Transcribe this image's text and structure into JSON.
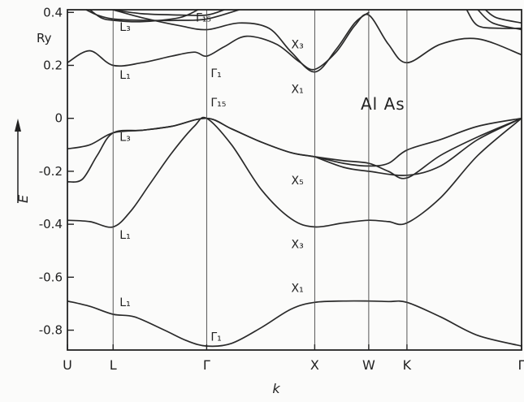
{
  "chart_data": {
    "type": "line",
    "title": "Al As",
    "xlabel": "k",
    "ylabel": "E",
    "yunit": "Ry",
    "ylim": [
      -0.875,
      0.41
    ],
    "yticks": [
      0.4,
      0.2,
      0,
      -0.2,
      -0.4,
      -0.6,
      -0.8
    ],
    "ytick_labels": [
      "0.4",
      "0.2",
      "0",
      "-0.2",
      "-0.4",
      "-0.6",
      "-0.8"
    ],
    "xticks": [
      {
        "label": "U",
        "k": 0
      },
      {
        "label": "L",
        "k": 0.612
      },
      {
        "label": "Γ",
        "k": 1.866
      },
      {
        "label": "X",
        "k": 3.314
      },
      {
        "label": "W",
        "k": 4.038
      },
      {
        "label": "K",
        "k": 4.55
      },
      {
        "label": "Γ",
        "k": 6.086
      }
    ],
    "grid": false,
    "series": [
      {
        "values": [
          [
            0,
            -0.69
          ],
          [
            0.3,
            -0.71
          ],
          [
            0.612,
            -0.74
          ],
          [
            0.9,
            -0.75
          ],
          [
            1.3,
            -0.8
          ],
          [
            1.6,
            -0.84
          ],
          [
            1.866,
            -0.86
          ],
          [
            2.2,
            -0.85
          ],
          [
            2.6,
            -0.79
          ],
          [
            3.0,
            -0.72
          ],
          [
            3.314,
            -0.695
          ],
          [
            3.7,
            -0.69
          ],
          [
            4.038,
            -0.69
          ],
          [
            4.3,
            -0.692
          ],
          [
            4.55,
            -0.695
          ],
          [
            5.0,
            -0.75
          ],
          [
            5.5,
            -0.82
          ],
          [
            6.086,
            -0.86
          ]
        ]
      },
      {
        "values": [
          [
            0,
            -0.385
          ],
          [
            0.3,
            -0.39
          ],
          [
            0.612,
            -0.41
          ],
          [
            0.85,
            -0.35
          ],
          [
            1.1,
            -0.25
          ],
          [
            1.4,
            -0.13
          ],
          [
            1.7,
            -0.03
          ],
          [
            1.866,
            0.0
          ],
          [
            2.2,
            -0.1
          ],
          [
            2.6,
            -0.27
          ],
          [
            3.0,
            -0.38
          ],
          [
            3.314,
            -0.41
          ],
          [
            3.7,
            -0.395
          ],
          [
            4.038,
            -0.385
          ],
          [
            4.3,
            -0.39
          ],
          [
            4.55,
            -0.395
          ],
          [
            5.0,
            -0.3
          ],
          [
            5.5,
            -0.14
          ],
          [
            6.086,
            0.0
          ]
        ]
      },
      {
        "values": [
          [
            0,
            -0.24
          ],
          [
            0.2,
            -0.23
          ],
          [
            0.4,
            -0.14
          ],
          [
            0.612,
            -0.055
          ],
          [
            1.0,
            -0.045
          ],
          [
            1.4,
            -0.03
          ],
          [
            1.866,
            0.0
          ],
          [
            2.2,
            -0.04
          ],
          [
            2.6,
            -0.09
          ],
          [
            3.0,
            -0.13
          ],
          [
            3.314,
            -0.145
          ],
          [
            3.7,
            -0.16
          ],
          [
            4.038,
            -0.17
          ],
          [
            4.3,
            -0.2
          ],
          [
            4.55,
            -0.225
          ],
          [
            5.0,
            -0.14
          ],
          [
            5.5,
            -0.07
          ],
          [
            6.086,
            0.0
          ]
        ]
      },
      {
        "values": [
          [
            0,
            -0.115
          ],
          [
            0.3,
            -0.1
          ],
          [
            0.612,
            -0.055
          ],
          [
            1.0,
            -0.045
          ],
          [
            1.4,
            -0.03
          ],
          [
            1.866,
            0.0
          ],
          [
            2.2,
            -0.04
          ],
          [
            2.6,
            -0.09
          ],
          [
            3.0,
            -0.13
          ],
          [
            3.314,
            -0.145
          ],
          [
            3.7,
            -0.17
          ],
          [
            4.038,
            -0.18
          ],
          [
            4.3,
            -0.17
          ],
          [
            4.55,
            -0.12
          ],
          [
            5.0,
            -0.08
          ],
          [
            5.5,
            -0.03
          ],
          [
            6.086,
            0.0
          ]
        ]
      },
      {
        "values": [
          [
            3.314,
            -0.145
          ],
          [
            3.7,
            -0.185
          ],
          [
            4.038,
            -0.2
          ],
          [
            4.55,
            -0.215
          ],
          [
            5.0,
            -0.18
          ],
          [
            5.5,
            -0.08
          ],
          [
            6.086,
            0.0
          ]
        ]
      },
      {
        "values": [
          [
            0,
            0.21
          ],
          [
            0.3,
            0.255
          ],
          [
            0.612,
            0.2
          ],
          [
            1.0,
            0.21
          ],
          [
            1.4,
            0.235
          ],
          [
            1.7,
            0.25
          ],
          [
            1.866,
            0.235
          ],
          [
            2.1,
            0.27
          ],
          [
            2.4,
            0.31
          ],
          [
            2.8,
            0.28
          ],
          [
            3.1,
            0.215
          ],
          [
            3.314,
            0.185
          ],
          [
            3.6,
            0.25
          ],
          [
            3.85,
            0.35
          ],
          [
            4.038,
            0.39
          ],
          [
            4.3,
            0.28
          ],
          [
            4.55,
            0.21
          ],
          [
            5.0,
            0.28
          ],
          [
            5.5,
            0.3
          ],
          [
            6.086,
            0.24
          ]
        ]
      },
      {
        "values": [
          [
            0.612,
            0.41
          ],
          [
            1.0,
            0.38
          ],
          [
            1.5,
            0.35
          ],
          [
            1.866,
            0.335
          ],
          [
            2.3,
            0.36
          ],
          [
            2.7,
            0.34
          ],
          [
            3.0,
            0.25
          ],
          [
            3.314,
            0.175
          ],
          [
            3.6,
            0.26
          ],
          [
            3.85,
            0.36
          ],
          [
            4.038,
            0.4
          ]
        ]
      },
      {
        "values": [
          [
            0.25,
            0.41
          ],
          [
            0.4,
            0.39
          ],
          [
            0.612,
            0.375
          ],
          [
            1.0,
            0.37
          ],
          [
            1.5,
            0.37
          ],
          [
            1.866,
            0.375
          ],
          [
            2.3,
            0.41
          ]
        ]
      },
      {
        "values": [
          [
            0.612,
            0.41
          ],
          [
            1.0,
            0.395
          ],
          [
            1.5,
            0.39
          ],
          [
            1.866,
            0.39
          ],
          [
            2.1,
            0.41
          ]
        ]
      },
      {
        "values": [
          [
            0.3,
            0.41
          ],
          [
            0.45,
            0.38
          ],
          [
            0.612,
            0.37
          ],
          [
            1.0,
            0.365
          ],
          [
            1.5,
            0.38
          ],
          [
            1.75,
            0.41
          ]
        ]
      },
      {
        "values": [
          [
            5.35,
            0.41
          ],
          [
            5.5,
            0.35
          ],
          [
            5.8,
            0.34
          ],
          [
            6.086,
            0.34
          ]
        ]
      },
      {
        "values": [
          [
            5.5,
            0.41
          ],
          [
            5.7,
            0.36
          ],
          [
            6.086,
            0.335
          ]
        ]
      },
      {
        "values": [
          [
            5.6,
            0.41
          ],
          [
            5.75,
            0.38
          ],
          [
            6.086,
            0.36
          ]
        ]
      }
    ],
    "annotations": [
      {
        "text": "L₃",
        "k": 0.7,
        "e": 0.33
      },
      {
        "text": "L₁",
        "k": 0.7,
        "e": 0.15
      },
      {
        "text": "L₃",
        "k": 0.7,
        "e": -0.085
      },
      {
        "text": "L₁",
        "k": 0.7,
        "e": -0.455
      },
      {
        "text": "L₁",
        "k": 0.7,
        "e": -0.71
      },
      {
        "text": "Γ₁₅",
        "k": 1.72,
        "e": 0.365
      },
      {
        "text": "Γ₁",
        "k": 1.92,
        "e": 0.155
      },
      {
        "text": "Γ₁₅",
        "k": 1.92,
        "e": 0.045
      },
      {
        "text": "Γ₁",
        "k": 1.92,
        "e": -0.84
      },
      {
        "text": "X₃",
        "k": 3.0,
        "e": 0.265
      },
      {
        "text": "X₁",
        "k": 3.0,
        "e": 0.095
      },
      {
        "text": "X₅",
        "k": 3.0,
        "e": -0.25
      },
      {
        "text": "X₃",
        "k": 3.0,
        "e": -0.49
      },
      {
        "text": "X₁",
        "k": 3.0,
        "e": -0.655
      }
    ]
  }
}
